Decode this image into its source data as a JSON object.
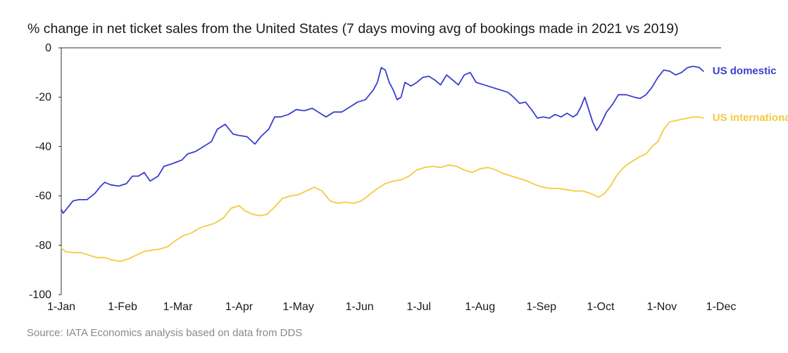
{
  "chart_data": {
    "type": "line",
    "title": "% change in net ticket sales from the United States (7 days moving avg of bookings made in 2021 vs 2019)",
    "source": "Source:  IATA Economics analysis based on data from DDS",
    "ylim": [
      -100,
      0
    ],
    "yticks": [
      0,
      -20,
      -40,
      -60,
      -80,
      -100
    ],
    "ytick_labels": [
      "0",
      "-20",
      "-40",
      "-60",
      "-80",
      "-100"
    ],
    "xlim": [
      "2021-01-01",
      "2021-12-01"
    ],
    "xticks": [
      "2021-01-01",
      "2021-02-01",
      "2021-03-01",
      "2021-04-01",
      "2021-05-01",
      "2021-06-01",
      "2021-07-01",
      "2021-08-01",
      "2021-09-01",
      "2021-10-01",
      "2021-11-01",
      "2021-12-01"
    ],
    "xtick_labels": [
      "1-Jan",
      "1-Feb",
      "1-Mar",
      "1-Apr",
      "1-May",
      "1-Jun",
      "1-Jul",
      "1-Aug",
      "1-Sep",
      "1-Oct",
      "1-Nov",
      "1-Dec"
    ],
    "grid": false,
    "legend": "inline labels at right end of lines",
    "series": [
      {
        "name": "US domestic",
        "color": "#3a3fce",
        "points": [
          [
            "2021-01-01",
            -65.5
          ],
          [
            "2021-01-02",
            -67
          ],
          [
            "2021-01-04",
            -65
          ],
          [
            "2021-01-07",
            -62
          ],
          [
            "2021-01-10",
            -61.5
          ],
          [
            "2021-01-14",
            -61.5
          ],
          [
            "2021-01-18",
            -59
          ],
          [
            "2021-01-21",
            -56
          ],
          [
            "2021-01-23",
            -54.5
          ],
          [
            "2021-01-26",
            -55.5
          ],
          [
            "2021-01-30",
            -56
          ],
          [
            "2021-02-03",
            -55
          ],
          [
            "2021-02-06",
            -52
          ],
          [
            "2021-02-09",
            -52
          ],
          [
            "2021-02-12",
            -50.5
          ],
          [
            "2021-02-15",
            -54
          ],
          [
            "2021-02-19",
            -52
          ],
          [
            "2021-02-22",
            -48
          ],
          [
            "2021-02-26",
            -47
          ],
          [
            "2021-03-03",
            -45.5
          ],
          [
            "2021-03-06",
            -43
          ],
          [
            "2021-03-10",
            -42
          ],
          [
            "2021-03-14",
            -40
          ],
          [
            "2021-03-18",
            -38
          ],
          [
            "2021-03-21",
            -33
          ],
          [
            "2021-03-25",
            -31
          ],
          [
            "2021-03-29",
            -35
          ],
          [
            "2021-04-01",
            -35.5
          ],
          [
            "2021-04-05",
            -36
          ],
          [
            "2021-04-09",
            -39
          ],
          [
            "2021-04-12",
            -36
          ],
          [
            "2021-04-16",
            -33
          ],
          [
            "2021-04-19",
            -28
          ],
          [
            "2021-04-22",
            -28
          ],
          [
            "2021-04-26",
            -27
          ],
          [
            "2021-04-30",
            -25
          ],
          [
            "2021-05-04",
            -25.5
          ],
          [
            "2021-05-08",
            -24.5
          ],
          [
            "2021-05-11",
            -26
          ],
          [
            "2021-05-15",
            -28
          ],
          [
            "2021-05-19",
            -26
          ],
          [
            "2021-05-23",
            -26
          ],
          [
            "2021-05-27",
            -24
          ],
          [
            "2021-05-31",
            -22
          ],
          [
            "2021-06-04",
            -21
          ],
          [
            "2021-06-08",
            -17
          ],
          [
            "2021-06-10",
            -14
          ],
          [
            "2021-06-12",
            -8
          ],
          [
            "2021-06-14",
            -9
          ],
          [
            "2021-06-16",
            -14
          ],
          [
            "2021-06-18",
            -17
          ],
          [
            "2021-06-20",
            -21
          ],
          [
            "2021-06-22",
            -20
          ],
          [
            "2021-06-24",
            -14
          ],
          [
            "2021-06-27",
            -15.5
          ],
          [
            "2021-06-30",
            -14
          ],
          [
            "2021-07-03",
            -12
          ],
          [
            "2021-07-06",
            -11.5
          ],
          [
            "2021-07-09",
            -13
          ],
          [
            "2021-07-12",
            -15
          ],
          [
            "2021-07-15",
            -11
          ],
          [
            "2021-07-18",
            -13
          ],
          [
            "2021-07-21",
            -15
          ],
          [
            "2021-07-24",
            -11
          ],
          [
            "2021-07-27",
            -10
          ],
          [
            "2021-07-30",
            -14
          ],
          [
            "2021-08-03",
            -15
          ],
          [
            "2021-08-07",
            -16
          ],
          [
            "2021-08-11",
            -17
          ],
          [
            "2021-08-15",
            -18
          ],
          [
            "2021-08-18",
            -20
          ],
          [
            "2021-08-21",
            -22.5
          ],
          [
            "2021-08-24",
            -22
          ],
          [
            "2021-08-27",
            -25
          ],
          [
            "2021-08-30",
            -28.5
          ],
          [
            "2021-09-02",
            -28
          ],
          [
            "2021-09-05",
            -28.5
          ],
          [
            "2021-09-08",
            -27
          ],
          [
            "2021-09-11",
            -28
          ],
          [
            "2021-09-14",
            -26.5
          ],
          [
            "2021-09-17",
            -28
          ],
          [
            "2021-09-19",
            -27
          ],
          [
            "2021-09-21",
            -24
          ],
          [
            "2021-09-23",
            -20
          ],
          [
            "2021-09-25",
            -25
          ],
          [
            "2021-09-27",
            -30
          ],
          [
            "2021-09-29",
            -33.5
          ],
          [
            "2021-10-01",
            -31
          ],
          [
            "2021-10-04",
            -26
          ],
          [
            "2021-10-07",
            -23
          ],
          [
            "2021-10-10",
            -19
          ],
          [
            "2021-10-14",
            -19
          ],
          [
            "2021-10-18",
            -20
          ],
          [
            "2021-10-21",
            -20.5
          ],
          [
            "2021-10-24",
            -19
          ],
          [
            "2021-10-27",
            -16
          ],
          [
            "2021-10-30",
            -12
          ],
          [
            "2021-11-02",
            -9
          ],
          [
            "2021-11-05",
            -9.5
          ],
          [
            "2021-11-08",
            -11
          ],
          [
            "2021-11-11",
            -10
          ],
          [
            "2021-11-14",
            -8
          ],
          [
            "2021-11-17",
            -7.5
          ],
          [
            "2021-11-20",
            -8
          ],
          [
            "2021-11-22",
            -9.5
          ]
        ]
      },
      {
        "name": "US international",
        "color": "#f2cc40",
        "points": [
          [
            "2021-01-01",
            -81
          ],
          [
            "2021-01-03",
            -82.5
          ],
          [
            "2021-01-07",
            -83
          ],
          [
            "2021-01-11",
            -83
          ],
          [
            "2021-01-15",
            -84
          ],
          [
            "2021-01-19",
            -85
          ],
          [
            "2021-01-23",
            -85
          ],
          [
            "2021-01-27",
            -86
          ],
          [
            "2021-01-31",
            -86.5
          ],
          [
            "2021-02-04",
            -85.5
          ],
          [
            "2021-02-08",
            -84
          ],
          [
            "2021-02-12",
            -82.5
          ],
          [
            "2021-02-16",
            -82
          ],
          [
            "2021-02-20",
            -81.5
          ],
          [
            "2021-02-24",
            -80.5
          ],
          [
            "2021-02-28",
            -78
          ],
          [
            "2021-03-04",
            -76
          ],
          [
            "2021-03-08",
            -75
          ],
          [
            "2021-03-12",
            -73
          ],
          [
            "2021-03-16",
            -72
          ],
          [
            "2021-03-20",
            -71
          ],
          [
            "2021-03-24",
            -69
          ],
          [
            "2021-03-28",
            -65
          ],
          [
            "2021-04-01",
            -64
          ],
          [
            "2021-04-04",
            -66
          ],
          [
            "2021-04-08",
            -67.5
          ],
          [
            "2021-04-12",
            -68
          ],
          [
            "2021-04-15",
            -67.5
          ],
          [
            "2021-04-19",
            -64.5
          ],
          [
            "2021-04-23",
            -61
          ],
          [
            "2021-04-27",
            -60
          ],
          [
            "2021-05-01",
            -59.5
          ],
          [
            "2021-05-05",
            -58
          ],
          [
            "2021-05-09",
            -56.5
          ],
          [
            "2021-05-13",
            -58
          ],
          [
            "2021-05-17",
            -62
          ],
          [
            "2021-05-21",
            -63
          ],
          [
            "2021-05-25",
            -62.5
          ],
          [
            "2021-05-29",
            -63
          ],
          [
            "2021-06-02",
            -62
          ],
          [
            "2021-06-06",
            -59.5
          ],
          [
            "2021-06-10",
            -57
          ],
          [
            "2021-06-14",
            -55
          ],
          [
            "2021-06-18",
            -54
          ],
          [
            "2021-06-22",
            -53.5
          ],
          [
            "2021-06-26",
            -52
          ],
          [
            "2021-06-30",
            -49.5
          ],
          [
            "2021-07-04",
            -48.5
          ],
          [
            "2021-07-08",
            -48
          ],
          [
            "2021-07-12",
            -48.5
          ],
          [
            "2021-07-16",
            -47.5
          ],
          [
            "2021-07-20",
            -48
          ],
          [
            "2021-07-24",
            -49.5
          ],
          [
            "2021-07-28",
            -50.5
          ],
          [
            "2021-08-01",
            -49
          ],
          [
            "2021-08-05",
            -48.5
          ],
          [
            "2021-08-09",
            -49.5
          ],
          [
            "2021-08-13",
            -51
          ],
          [
            "2021-08-17",
            -52
          ],
          [
            "2021-08-21",
            -53
          ],
          [
            "2021-08-25",
            -54
          ],
          [
            "2021-08-29",
            -55.5
          ],
          [
            "2021-09-02",
            -56.5
          ],
          [
            "2021-09-06",
            -57
          ],
          [
            "2021-09-10",
            -57
          ],
          [
            "2021-09-14",
            -57.5
          ],
          [
            "2021-09-18",
            -58
          ],
          [
            "2021-09-22",
            -58
          ],
          [
            "2021-09-26",
            -59
          ],
          [
            "2021-09-30",
            -60.5
          ],
          [
            "2021-10-03",
            -59
          ],
          [
            "2021-10-06",
            -56
          ],
          [
            "2021-10-09",
            -52
          ],
          [
            "2021-10-12",
            -49
          ],
          [
            "2021-10-15",
            -47
          ],
          [
            "2021-10-18",
            -45.5
          ],
          [
            "2021-10-21",
            -44
          ],
          [
            "2021-10-24",
            -43
          ],
          [
            "2021-10-27",
            -40
          ],
          [
            "2021-10-30",
            -38
          ],
          [
            "2021-11-02",
            -33
          ],
          [
            "2021-11-05",
            -30
          ],
          [
            "2021-11-08",
            -29.5
          ],
          [
            "2021-11-11",
            -29
          ],
          [
            "2021-11-14",
            -28.5
          ],
          [
            "2021-11-17",
            -28
          ],
          [
            "2021-11-20",
            -28
          ],
          [
            "2021-11-22",
            -28.5
          ]
        ]
      }
    ]
  }
}
